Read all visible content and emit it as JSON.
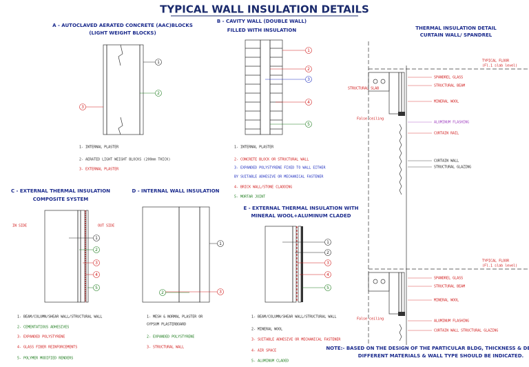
{
  "title": "TYPICAL WALL INSULATION DETAILS",
  "sections": [
    {
      "heading": [
        "A - AUTOCLAVED AERATED CONCRETE (AAC)BLOCKS",
        "(LIGHT WEIGHT BLOCKS)"
      ],
      "callouts": [
        {
          "text": "1",
          "color": "#222"
        },
        {
          "text": "2",
          "color": "#1a7a1a"
        },
        {
          "text": "3",
          "color": "#d01818"
        }
      ],
      "legend": [
        {
          "text": "1- INTERNAL PLASTER",
          "color": "#222"
        },
        {
          "text": "2- AERATED LIGHT WEIGHT BLOCKS (200mm THICK)",
          "color": "#333"
        },
        {
          "text": "3- EXTERNAL PLASTER",
          "color": "#d01818"
        }
      ]
    },
    {
      "heading": [
        "B - CAVITY WALL (DOUBLE WALL)",
        "FILLED WITH INSULATION"
      ],
      "callouts": [
        {
          "text": "1",
          "color": "#d01818"
        },
        {
          "text": "2",
          "color": "#d01818"
        },
        {
          "text": "3",
          "color": "#2030c0"
        },
        {
          "text": "4",
          "color": "#d01818"
        },
        {
          "text": "5",
          "color": "#1a7a1a"
        }
      ],
      "legend": [
        {
          "text": "1- INTERNAL PLASTER",
          "color": "#222"
        },
        {
          "text": "2- CONCRETE BLOCK OR STRUCTURAL WALL",
          "color": "#d01818"
        },
        {
          "text": "3- EXPANDED POLYSTYRENE FIXED TO WALL EITHER",
          "color": "#2030c0"
        },
        {
          "text": "BY SUITABLE ADHESIVE OR MECHANICAL FASTENER",
          "color": "#2030c0"
        },
        {
          "text": "4- BRICK WALL/STONE CLADDING",
          "color": "#d01818"
        },
        {
          "text": "5- MORTAR JOINT",
          "color": "#1a7a1a"
        }
      ]
    },
    {
      "heading": [
        "C - EXTERNAL THERMAL INSULATION",
        "COMPOSITE SYSTEM"
      ],
      "labels": [
        {
          "text": "IN SIDE",
          "color": "#d01818"
        },
        {
          "text": "OUT SIDE",
          "color": "#d01818"
        }
      ],
      "callouts": [
        {
          "text": "1",
          "color": "#222"
        },
        {
          "text": "2",
          "color": "#1a7a1a"
        },
        {
          "text": "3",
          "color": "#d01818"
        },
        {
          "text": "4",
          "color": "#d01818"
        },
        {
          "text": "5",
          "color": "#1a7a1a"
        }
      ],
      "legend": [
        {
          "text": "1- BEAM/COLUMN/SHEAR WALL/STRUCTURAL WALL",
          "color": "#222"
        },
        {
          "text": "2- CEMENTATIOUS ADHESIVES",
          "color": "#1a7a1a"
        },
        {
          "text": "3- EXPANDED POLYSTYRENE",
          "color": "#d01818"
        },
        {
          "text": "4- GLASS FIBER REINFORCEMENTS",
          "color": "#d01818"
        },
        {
          "text": "5- POLYMER MODIFIED RENDERS",
          "color": "#1a7a1a"
        }
      ]
    },
    {
      "heading": [
        "D - INTERNAL WALL INSULATION"
      ],
      "callouts": [
        {
          "text": "1",
          "color": "#222"
        },
        {
          "text": "2",
          "color": "#1a7a1a"
        },
        {
          "text": "3",
          "color": "#d01818"
        }
      ],
      "legend": [
        {
          "text": "1- MESH & NORMAL PLASTER OR",
          "color": "#222"
        },
        {
          "text": "GYPSUM PLASTERBOARD",
          "color": "#222"
        },
        {
          "text": "2- EXPANDED POLYSTYRENE",
          "color": "#1a7a1a"
        },
        {
          "text": "3- STRUCTURAL WALL",
          "color": "#d01818"
        }
      ]
    },
    {
      "heading": [
        "E - EXTERNAL THERMAL INSULATION WITH",
        "MINERAL WOOL+ALUMINUM CLADED"
      ],
      "callouts": [
        {
          "text": "1",
          "color": "#222"
        },
        {
          "text": "2",
          "color": "#222"
        },
        {
          "text": "3",
          "color": "#d01818"
        },
        {
          "text": "4",
          "color": "#d01818"
        },
        {
          "text": "5",
          "color": "#1a7a1a"
        }
      ],
      "legend": [
        {
          "text": "1- BEAM/COLUMN/SHEAR WALL/STRUCTURAL WALL",
          "color": "#222"
        },
        {
          "text": "2- MINERAL WOOL",
          "color": "#222"
        },
        {
          "text": "3- SUITABLE ADHESIVE OR MECHANICAL FASTENER",
          "color": "#d01818"
        },
        {
          "text": "4- AIR SPACE",
          "color": "#d01818"
        },
        {
          "text": "5- ALUMINUM CLADED",
          "color": "#1a7a1a"
        }
      ]
    },
    {
      "heading": [
        "THERMAL INSULATION DETAIL",
        "CURTAIN WALL/ SPANDREL"
      ],
      "labels": [
        {
          "text": "TYPICAL FLOOR",
          "color": "#d01818"
        },
        {
          "text": "(Fl.1 slab level)",
          "color": "#d01818"
        },
        {
          "text": "SPANDREL GLASS",
          "color": "#d01818"
        },
        {
          "text": "STRUCTURAL BEAM",
          "color": "#d01818"
        },
        {
          "text": "STRUCTURAL SLAB",
          "color": "#d01818"
        },
        {
          "text": "MINERAL WOOL",
          "color": "#d01818"
        },
        {
          "text": "False ceiling",
          "color": "#d01818"
        },
        {
          "text": "ALUMINUM FLASHING",
          "color": "#a040c0"
        },
        {
          "text": "CURTAIN RAIL",
          "color": "#d01818"
        },
        {
          "text": "CURTAIN WALL",
          "color": "#222"
        },
        {
          "text": "STRUCTURAL GLAZING",
          "color": "#222"
        },
        {
          "text": "TYPICAL FLOOR",
          "color": "#d01818"
        },
        {
          "text": "(Fl.1 slab level)",
          "color": "#d01818"
        },
        {
          "text": "SPANDREL GLASS",
          "color": "#d01818"
        },
        {
          "text": "STRUCTURAL BEAM",
          "color": "#d01818"
        },
        {
          "text": "MINERAL WOOL",
          "color": "#d01818"
        },
        {
          "text": "False ceiling",
          "color": "#d01818"
        },
        {
          "text": "ALUMINUM FLASHING",
          "color": "#d01818"
        },
        {
          "text": "CURTAIN WALL STRUCTURAL GLAZING",
          "color": "#d01818"
        }
      ]
    }
  ],
  "note": [
    "NOTE:- BASED ON THE DESIGN OF THE PARTICULAR BLDG, THICKNESS & DENSITY OF",
    "DIFFERENT MATERIALS & WALL TYPE SHOULD BE INDICATED."
  ]
}
